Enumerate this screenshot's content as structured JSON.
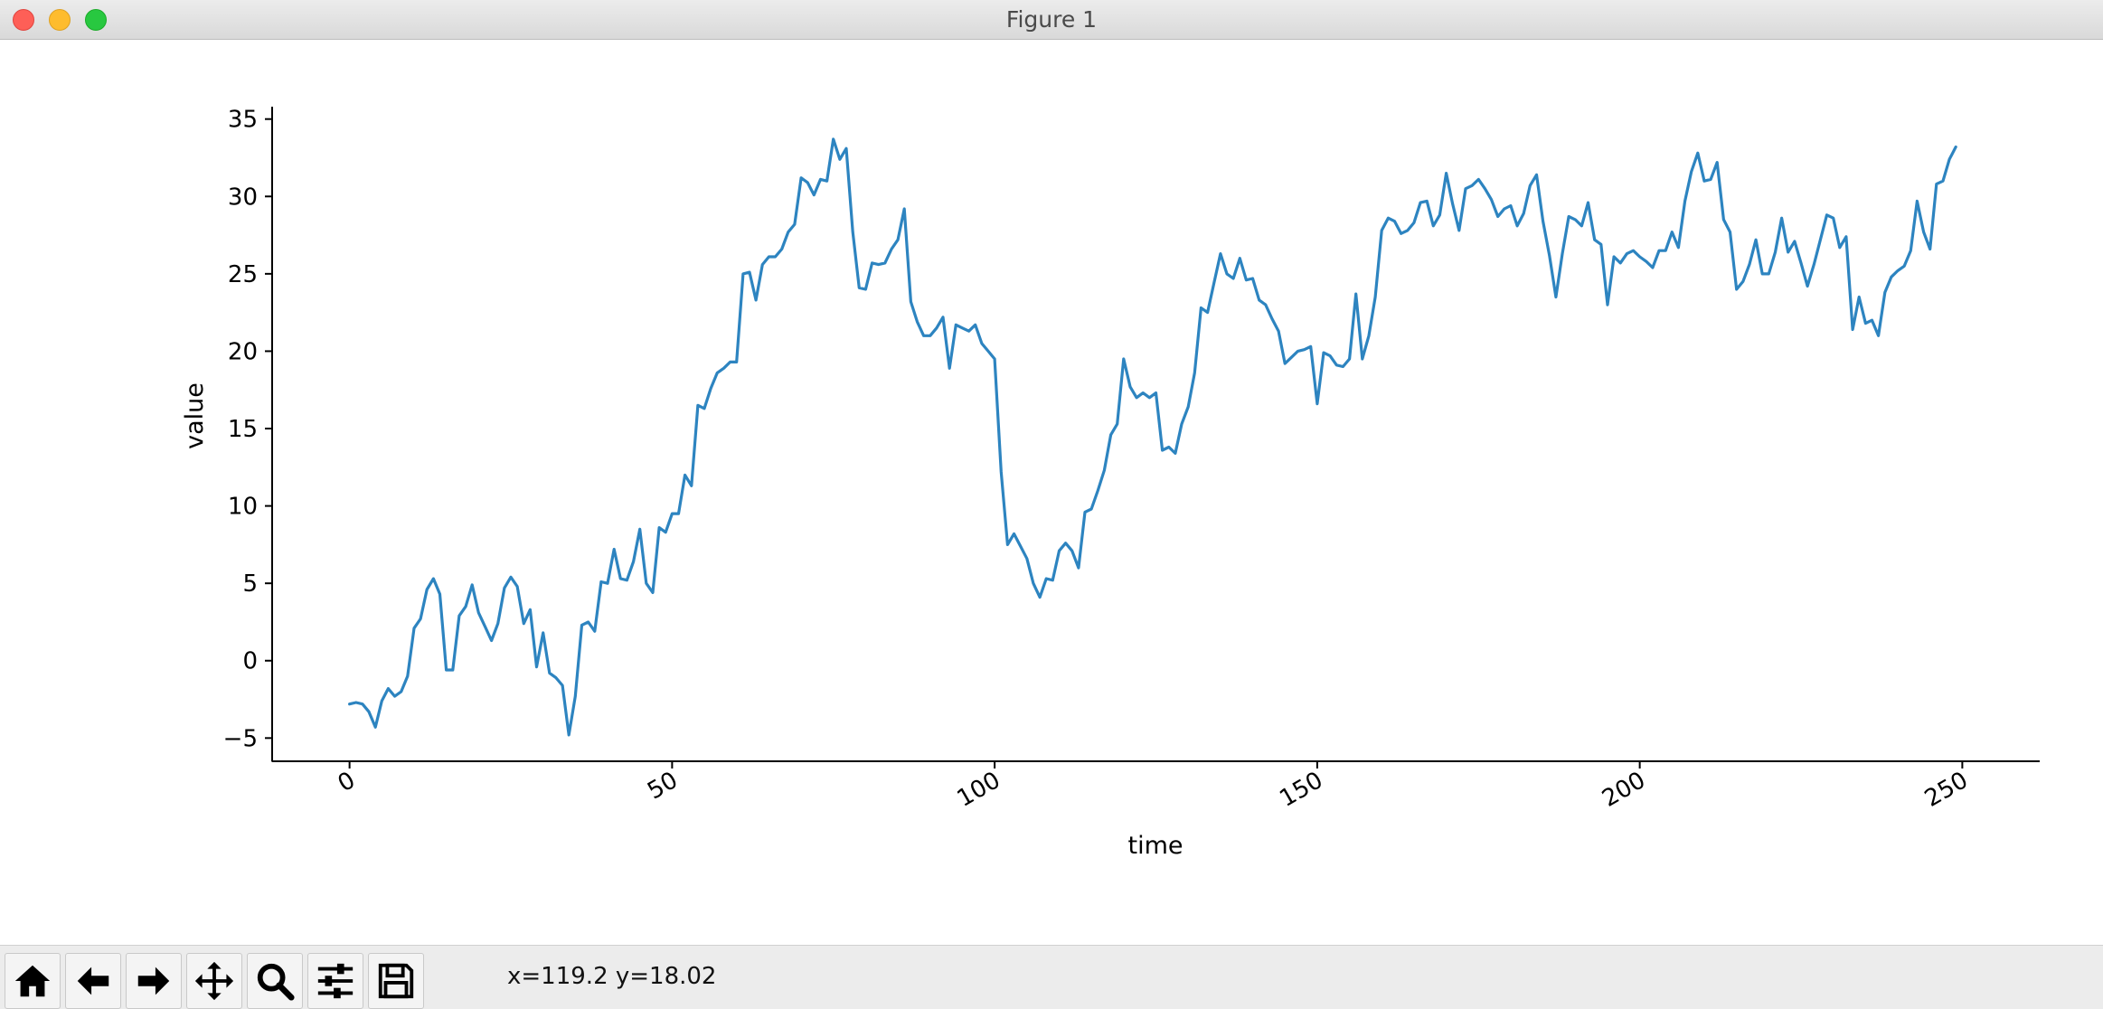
{
  "window": {
    "title": "Figure 1"
  },
  "toolbar": {
    "buttons": [
      {
        "name": "home-button",
        "icon": "home-icon"
      },
      {
        "name": "back-button",
        "icon": "arrow-left-icon"
      },
      {
        "name": "forward-button",
        "icon": "arrow-right-icon"
      },
      {
        "name": "pan-button",
        "icon": "move-icon"
      },
      {
        "name": "zoom-button",
        "icon": "search-icon"
      },
      {
        "name": "configure-subplots-button",
        "icon": "sliders-icon"
      },
      {
        "name": "save-button",
        "icon": "save-icon"
      }
    ],
    "coordinates": "x=119.2 y=18.02"
  },
  "chart_data": {
    "type": "line",
    "title": "",
    "xlabel": "time",
    "ylabel": "value",
    "xlim": [
      -12,
      262
    ],
    "ylim": [
      -6.5,
      35.8
    ],
    "xticks": [
      0,
      50,
      100,
      150,
      200,
      250
    ],
    "xtick_labels": [
      "0",
      "50",
      "100",
      "150",
      "200",
      "250"
    ],
    "yticks": [
      -5,
      0,
      5,
      10,
      15,
      20,
      25,
      30,
      35
    ],
    "ytick_labels": [
      "−5",
      "0",
      "5",
      "10",
      "15",
      "20",
      "25",
      "30",
      "35"
    ],
    "grid": false,
    "line_color": "#2d84c0",
    "series": [
      {
        "x": [
          0,
          1,
          2,
          3,
          4,
          5,
          6,
          7,
          8,
          9,
          10,
          11,
          12,
          13,
          14,
          15,
          16,
          17,
          18,
          19,
          20,
          21,
          22,
          23,
          24,
          25,
          26,
          27,
          28,
          29,
          30,
          31,
          32,
          33,
          34,
          35,
          36,
          37,
          38,
          39,
          40,
          41,
          42,
          43,
          44,
          45,
          46,
          47,
          48,
          49,
          50,
          51,
          52,
          53,
          54,
          55,
          56,
          57,
          58,
          59,
          60,
          61,
          62,
          63,
          64,
          65,
          66,
          67,
          68,
          69,
          70,
          71,
          72,
          73,
          74,
          75,
          76,
          77,
          78,
          79,
          80,
          81,
          82,
          83,
          84,
          85,
          86,
          87,
          88,
          89,
          90,
          91,
          92,
          93,
          94,
          95,
          96,
          97,
          98,
          99,
          100,
          101,
          102,
          103,
          104,
          105,
          106,
          107,
          108,
          109,
          110,
          111,
          112,
          113,
          114,
          115,
          116,
          117,
          118,
          119,
          120,
          121,
          122,
          123,
          124,
          125,
          126,
          127,
          128,
          129,
          130,
          131,
          132,
          133,
          134,
          135,
          136,
          137,
          138,
          139,
          140,
          141,
          142,
          143,
          144,
          145,
          146,
          147,
          148,
          149,
          150,
          151,
          152,
          153,
          154,
          155,
          156,
          157,
          158,
          159,
          160,
          161,
          162,
          163,
          164,
          165,
          166,
          167,
          168,
          169,
          170,
          171,
          172,
          173,
          174,
          175,
          176,
          177,
          178,
          179,
          180,
          181,
          182,
          183,
          184,
          185,
          186,
          187,
          188,
          189,
          190,
          191,
          192,
          193,
          194,
          195,
          196,
          197,
          198,
          199,
          200,
          201,
          202,
          203,
          204,
          205,
          206,
          207,
          208,
          209,
          210,
          211,
          212,
          213,
          214,
          215,
          216,
          217,
          218,
          219,
          220,
          221,
          222,
          223,
          224,
          225,
          226,
          227,
          228,
          229,
          230,
          231,
          232,
          233,
          234,
          235,
          236,
          237,
          238,
          239,
          240,
          241,
          242,
          243,
          244,
          245,
          246,
          247,
          248,
          249
        ],
        "values": [
          -2.8,
          -2.7,
          -2.8,
          -3.3,
          -4.3,
          -2.6,
          -1.8,
          -2.3,
          -2.0,
          -1.0,
          2.1,
          2.7,
          4.6,
          5.3,
          4.3,
          -0.6,
          -0.6,
          2.9,
          3.5,
          4.9,
          3.1,
          2.2,
          1.3,
          2.4,
          4.7,
          5.4,
          4.8,
          2.4,
          3.3,
          -0.4,
          1.8,
          -0.8,
          -1.1,
          -1.6,
          -4.8,
          -2.3,
          2.3,
          2.5,
          1.9,
          5.1,
          5.0,
          7.2,
          5.3,
          5.2,
          6.4,
          8.5,
          5.0,
          4.4,
          8.6,
          8.3,
          9.5,
          9.5,
          12.0,
          11.3,
          16.5,
          16.3,
          17.6,
          18.6,
          18.9,
          19.3,
          19.3,
          25.0,
          25.1,
          23.3,
          25.6,
          26.1,
          26.1,
          26.6,
          27.7,
          28.2,
          31.2,
          30.9,
          30.1,
          31.1,
          31.0,
          33.7,
          32.4,
          33.1,
          27.7,
          24.1,
          24.0,
          25.7,
          25.6,
          25.7,
          26.6,
          27.2,
          29.2,
          23.2,
          21.9,
          21.0,
          21.0,
          21.5,
          22.2,
          18.9,
          21.7,
          21.5,
          21.3,
          21.7,
          20.5,
          20.0,
          19.5,
          12.2,
          7.5,
          8.2,
          7.4,
          6.6,
          5.0,
          4.1,
          5.3,
          5.2,
          7.1,
          7.6,
          7.1,
          6.0,
          9.6,
          9.8,
          11.0,
          12.3,
          14.6,
          15.3,
          19.5,
          17.7,
          17.0,
          17.3,
          17.0,
          17.3,
          13.6,
          13.8,
          13.4,
          15.3,
          16.4,
          18.6,
          22.8,
          22.5,
          24.4,
          26.3,
          25.0,
          24.7,
          26.0,
          24.6,
          24.7,
          23.3,
          23.0,
          22.1,
          21.3,
          19.2,
          19.6,
          20.0,
          20.1,
          20.3,
          16.6,
          19.9,
          19.7,
          19.1,
          19.0,
          19.5,
          23.7,
          19.5,
          21.0,
          23.5,
          27.8,
          28.6,
          28.4,
          27.6,
          27.8,
          28.3,
          29.6,
          29.7,
          28.1,
          28.8,
          31.5,
          29.5,
          27.8,
          30.5,
          30.7,
          31.1,
          30.5,
          29.8,
          28.7,
          29.2,
          29.4,
          28.1,
          28.9,
          30.7,
          31.4,
          28.4,
          26.2,
          23.5,
          26.3,
          28.7,
          28.5,
          28.1,
          29.6,
          27.2,
          26.9,
          23.0,
          26.1,
          25.7,
          26.3,
          26.5,
          26.1,
          25.8,
          25.4,
          26.5,
          26.5,
          27.7,
          26.7,
          29.7,
          31.6,
          32.8,
          31.0,
          31.1,
          32.2,
          28.5,
          27.7,
          24.0,
          24.5,
          25.6,
          27.2,
          25.0,
          25.0,
          26.4,
          28.6,
          26.4,
          27.1,
          25.7,
          24.2,
          25.6,
          27.2,
          28.8,
          28.6,
          26.7,
          27.4,
          21.4,
          23.5,
          21.8,
          22.0,
          21.0,
          23.8,
          24.8,
          25.2,
          25.5,
          26.5,
          29.7,
          27.7,
          26.6,
          30.8,
          31.0,
          32.4,
          33.2
        ]
      }
    ]
  }
}
